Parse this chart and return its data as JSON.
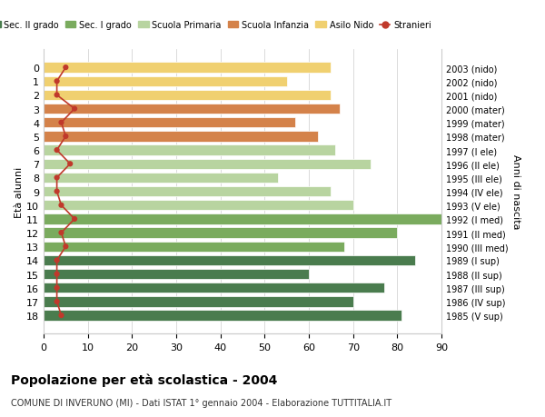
{
  "ages": [
    18,
    17,
    16,
    15,
    14,
    13,
    12,
    11,
    10,
    9,
    8,
    7,
    6,
    5,
    4,
    3,
    2,
    1,
    0
  ],
  "years": [
    "1985 (V sup)",
    "1986 (IV sup)",
    "1987 (III sup)",
    "1988 (II sup)",
    "1989 (I sup)",
    "1990 (III med)",
    "1991 (II med)",
    "1992 (I med)",
    "1993 (V ele)",
    "1994 (IV ele)",
    "1995 (III ele)",
    "1996 (II ele)",
    "1997 (I ele)",
    "1998 (mater)",
    "1999 (mater)",
    "2000 (mater)",
    "2001 (nido)",
    "2002 (nido)",
    "2003 (nido)"
  ],
  "bar_values": [
    81,
    70,
    77,
    60,
    84,
    68,
    80,
    90,
    70,
    65,
    53,
    74,
    66,
    62,
    57,
    67,
    65,
    55,
    65
  ],
  "stranieri": [
    4,
    3,
    3,
    3,
    3,
    5,
    4,
    7,
    4,
    3,
    3,
    6,
    3,
    5,
    4,
    7,
    3,
    3,
    5
  ],
  "bar_colors": [
    "#4a7c4e",
    "#4a7c4e",
    "#4a7c4e",
    "#4a7c4e",
    "#4a7c4e",
    "#7aab5e",
    "#7aab5e",
    "#7aab5e",
    "#b8d4a0",
    "#b8d4a0",
    "#b8d4a0",
    "#b8d4a0",
    "#b8d4a0",
    "#d4824a",
    "#d4824a",
    "#d4824a",
    "#f0d070",
    "#f0d070",
    "#f0d070"
  ],
  "legend_labels": [
    "Sec. II grado",
    "Sec. I grado",
    "Scuola Primaria",
    "Scuola Infanzia",
    "Asilo Nido",
    "Stranieri"
  ],
  "legend_colors": [
    "#4a7c4e",
    "#7aab5e",
    "#b8d4a0",
    "#d4824a",
    "#f0d070",
    "#c0392b"
  ],
  "stranieri_color": "#c0392b",
  "title": "Popolazione per età scolastica - 2004",
  "subtitle": "COMUNE DI INVERUNO (MI) - Dati ISTAT 1° gennaio 2004 - Elaborazione TUTTITALIA.IT",
  "ylabel": "Età alunni",
  "ylabel_right": "Anni di nascita",
  "xlim": [
    0,
    90
  ],
  "xticks": [
    0,
    10,
    20,
    30,
    40,
    50,
    60,
    70,
    80,
    90
  ],
  "bg_color": "#ffffff",
  "grid_color": "#cccccc"
}
